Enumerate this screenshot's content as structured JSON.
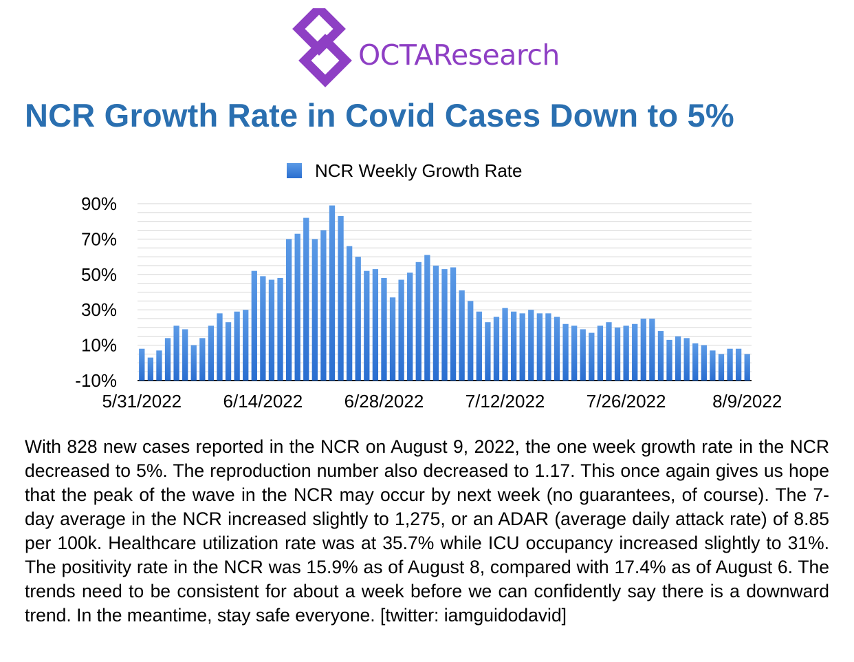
{
  "logo": {
    "text": "OCTAResearch",
    "icon": "octa-diamond-logo",
    "color": "#8e3fc4"
  },
  "title": "NCR Growth Rate in Covid Cases Down to 5%",
  "colors": {
    "title": "#2a6fb0",
    "bar_top": "#5b9ae6",
    "bar_bottom": "#2a6ed0",
    "grid": "#d6d6d6"
  },
  "chart_data": {
    "type": "bar",
    "legend": "NCR Weekly Growth Rate",
    "legend_position": "top-center",
    "grid": true,
    "yticks": [
      "90%",
      "70%",
      "50%",
      "30%",
      "10%",
      "-10%"
    ],
    "ylim": [
      -10,
      90
    ],
    "xticks": [
      "5/31/2022",
      "6/14/2022",
      "6/28/2022",
      "7/12/2022",
      "7/26/2022",
      "8/9/2022"
    ],
    "x_start": "5/31/2022",
    "x_end": "8/9/2022",
    "series": [
      {
        "name": "NCR Weekly Growth Rate",
        "values": [
          8,
          3,
          7,
          14,
          21,
          19,
          10,
          14,
          21,
          28,
          23,
          29,
          30,
          52,
          49,
          47,
          48,
          70,
          73,
          82,
          70,
          75,
          89,
          83,
          66,
          60,
          52,
          53,
          48,
          37,
          47,
          51,
          57,
          61,
          55,
          53,
          54,
          41,
          35,
          29,
          23,
          26,
          31,
          29,
          28,
          30,
          28,
          28,
          26,
          22,
          21,
          19,
          17,
          21,
          23,
          20,
          21,
          22,
          25,
          25,
          18,
          13,
          15,
          14,
          11,
          10,
          7,
          5,
          8,
          8,
          5
        ]
      }
    ]
  },
  "description": "With 828 new cases reported in the NCR on August 9, 2022, the one week growth rate in the NCR decreased to 5%. The reproduction number also decreased to 1.17. This once again gives us hope that the peak of the wave in the NCR may occur by next week (no guarantees, of course). The 7-day average in the NCR increased slightly to 1,275, or an ADAR (average daily attack rate) of 8.85 per 100k. Healthcare utilization rate was at 35.7% while ICU occupancy increased slightly to 31%. The positivity rate in the NCR was 15.9% as of August 8, compared with 17.4% as of August 6. The trends need to be consistent for about a week before we can confidently say there is a downward trend. In the meantime, stay safe everyone. [twitter: iamguidodavid]"
}
